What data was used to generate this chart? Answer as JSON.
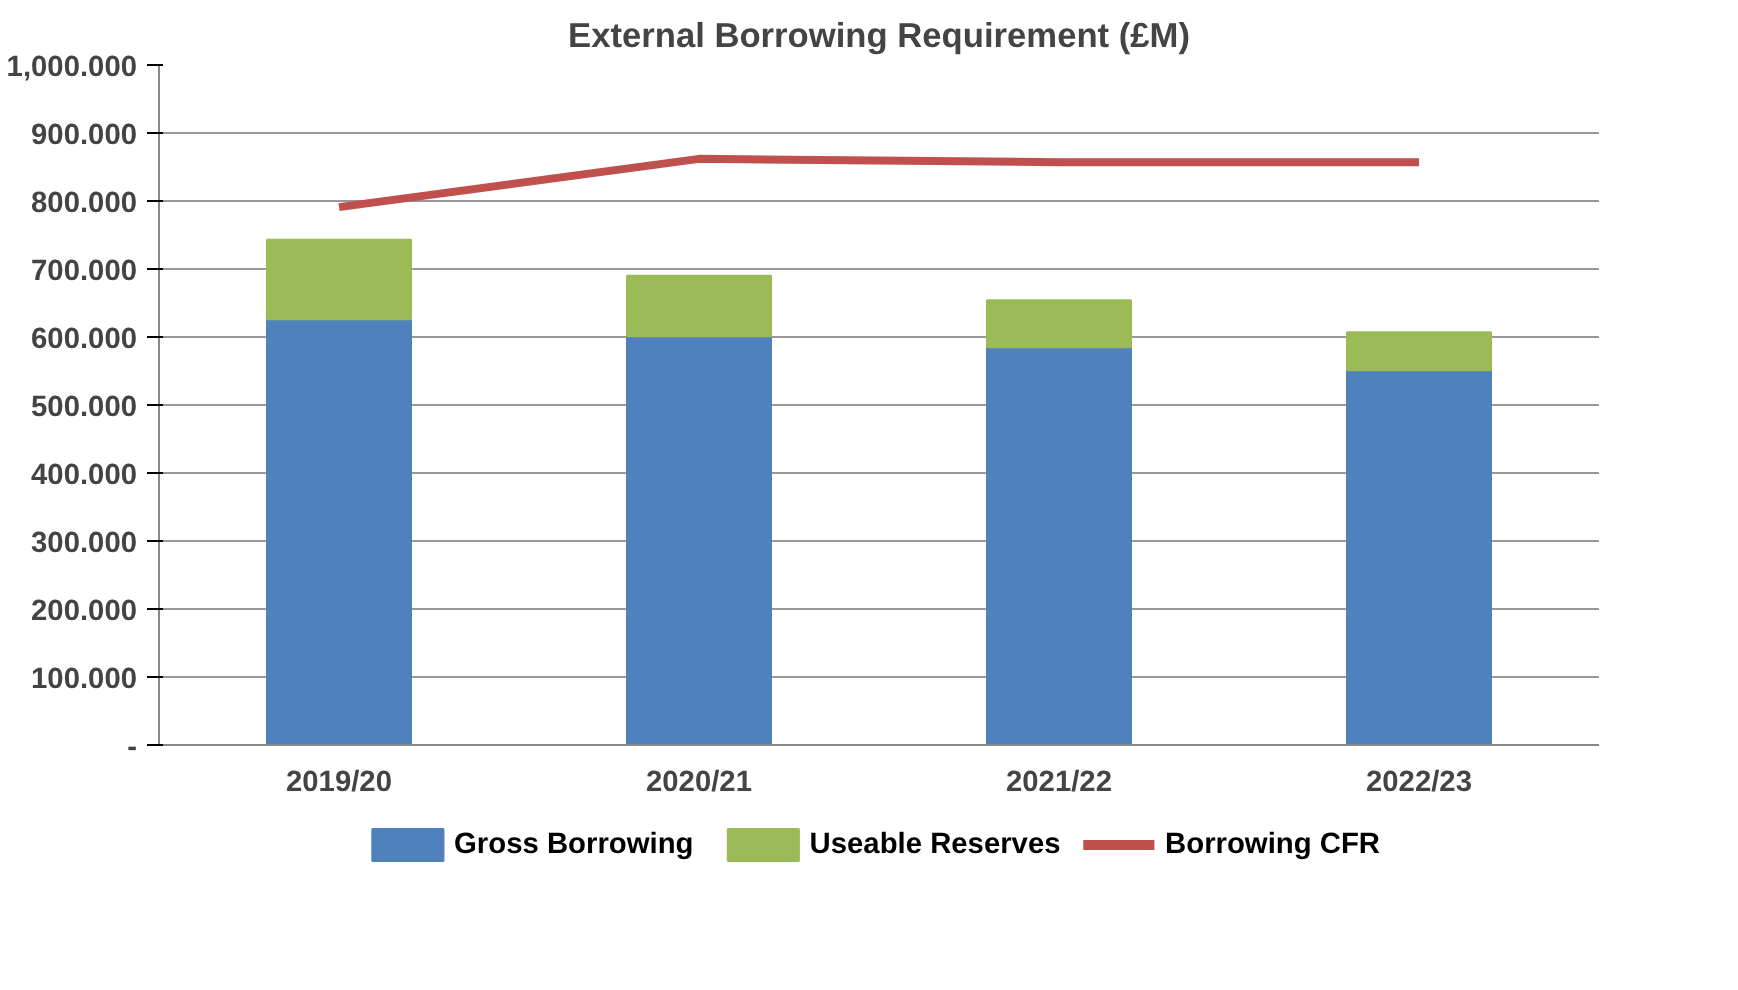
{
  "chart_data": {
    "type": "bar",
    "title": "External Borrowing Requirement (£M)",
    "stacked": true,
    "categories": [
      "2019/20",
      "2020/21",
      "2021/22",
      "2022/23"
    ],
    "series": [
      {
        "name": "Gross Borrowing",
        "color": "#4f81bd",
        "values": [
          626,
          601,
          585,
          551
        ]
      },
      {
        "name": "Useable Reserves",
        "color": "#9bbb59",
        "values": [
          117,
          89,
          69,
          56
        ]
      },
      {
        "name": "Borrowing CFR",
        "type": "line",
        "color": "#c0504d",
        "values": [
          791,
          862,
          857,
          857
        ]
      }
    ],
    "ylim": [
      0,
      1000
    ],
    "yticks": [
      {
        "value": 0,
        "label": "-"
      },
      {
        "value": 100,
        "label": "100.000"
      },
      {
        "value": 200,
        "label": "200.000"
      },
      {
        "value": 300,
        "label": "300.000"
      },
      {
        "value": 400,
        "label": "400.000"
      },
      {
        "value": 500,
        "label": "500.000"
      },
      {
        "value": 600,
        "label": "600.000"
      },
      {
        "value": 700,
        "label": "700.000"
      },
      {
        "value": 800,
        "label": "800.000"
      },
      {
        "value": 900,
        "label": "900.000"
      },
      {
        "value": 1000,
        "label": "1,000.000"
      }
    ],
    "grid": "y",
    "legend": "bottom"
  }
}
